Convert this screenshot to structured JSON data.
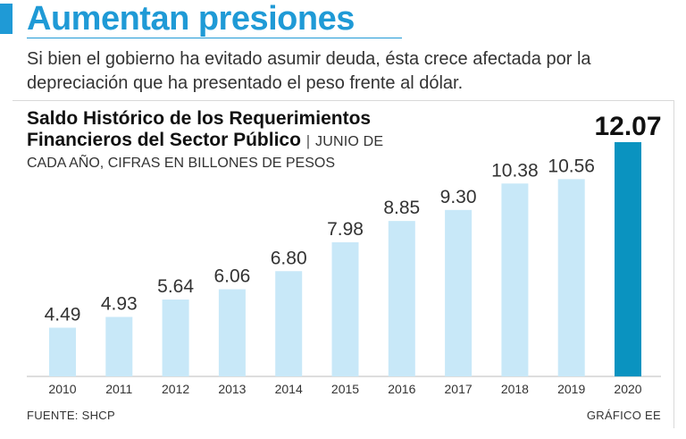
{
  "headline": "Aumentan presiones",
  "subtitle": "Si bien el gobierno ha evitado asumir deuda, ésta crece afectada por la depreciación que ha presentado el peso frente al dólar.",
  "footer": {
    "source": "FUENTE: SHCP",
    "credit": "GRÁFICO EE"
  },
  "colors": {
    "accent": "#1f9ad6",
    "bar": "#c8e8f8",
    "bar_highlight": "#0a93c0",
    "text": "#333333"
  },
  "chart_data": {
    "type": "bar",
    "title_line1": "Saldo Histórico de los Requerimientos",
    "title_line2": "Financieros del Sector Público",
    "title_separator": "|",
    "unit_part1": "JUNIO DE",
    "unit_part2": "CADA AÑO, CIFRAS EN BILLONES DE PESOS",
    "categories": [
      "2010",
      "2011",
      "2012",
      "2013",
      "2014",
      "2015",
      "2016",
      "2017",
      "2018",
      "2019",
      "2020"
    ],
    "values": [
      4.49,
      4.93,
      5.64,
      6.06,
      6.8,
      7.98,
      8.85,
      9.3,
      10.38,
      10.56,
      12.07
    ],
    "labels": [
      "4.49",
      "4.93",
      "5.64",
      "6.06",
      "6.80",
      "7.98",
      "8.85",
      "9.30",
      "10.38",
      "10.56",
      "12.07"
    ],
    "highlight_index": 10,
    "xlabel": "",
    "ylabel": "",
    "ylim": [
      2.5,
      12.07
    ]
  }
}
